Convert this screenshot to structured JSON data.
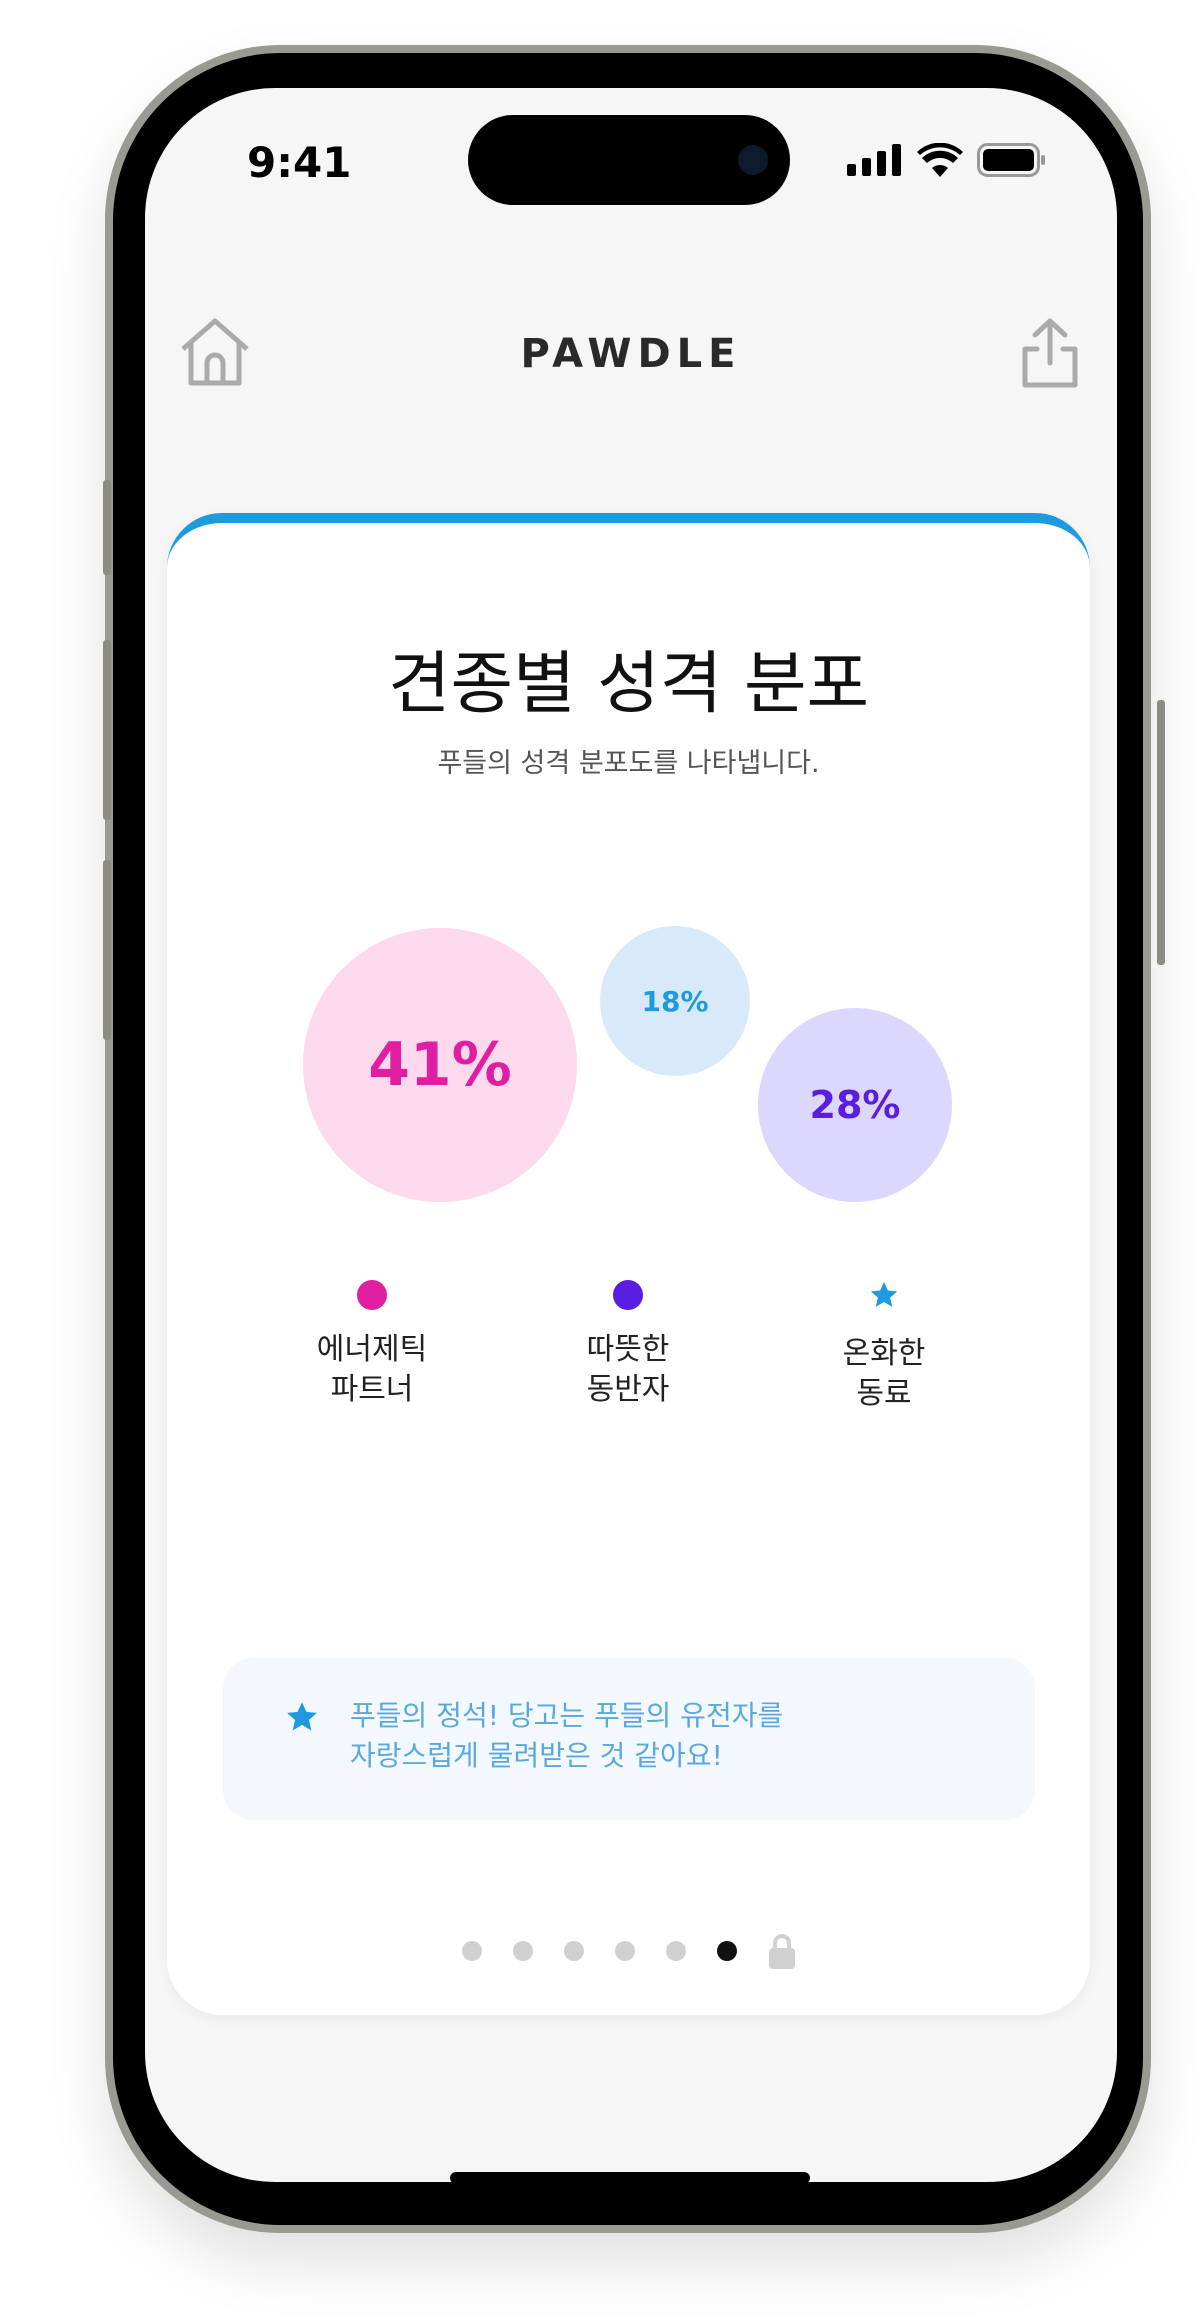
{
  "status_bar": {
    "time": "9:41"
  },
  "header": {
    "logo": "PAWDLE",
    "left_icon": "home-icon",
    "right_icon": "share-icon"
  },
  "card": {
    "accent_color": "#1e9ae0",
    "title": "견종별 성격 분포",
    "subtitle": "푸들의 성격 분포도를 나타냅니다.",
    "bubbles": [
      {
        "label": "41%",
        "value": 41,
        "fill": "#fdd9ee",
        "text_color": "#e01ea0"
      },
      {
        "label": "18%",
        "value": 18,
        "fill": "#d8eafa",
        "text_color": "#1e9ae0"
      },
      {
        "label": "28%",
        "value": 28,
        "fill": "#dcd8fd",
        "text_color": "#5a1ee0"
      }
    ],
    "legend": [
      {
        "line1": "에너제틱",
        "line2": "파트너",
        "color": "#e01ea0",
        "marker": "circle"
      },
      {
        "line1": "따뜻한",
        "line2": "동반자",
        "color": "#5a1ee0",
        "marker": "circle"
      },
      {
        "line1": "온화한",
        "line2": "동료",
        "color": "#1e9ae0",
        "marker": "star"
      }
    ],
    "info": {
      "icon": "star-icon",
      "line1": "푸들의 정석! 당고는 푸들의 유전자를",
      "line2": "자랑스럽게 물려받은 것 같아요!"
    },
    "pager": {
      "total_dots": 6,
      "active_index": 5,
      "locked_icon": "lock-icon"
    }
  },
  "chart_data": {
    "type": "bubble",
    "categories": [
      "에너제틱 파트너",
      "따뜻한 동반자",
      "온화한 동료"
    ],
    "values": [
      41,
      28,
      18
    ],
    "value_labels": [
      "41%",
      "28%",
      "18%"
    ]
  }
}
